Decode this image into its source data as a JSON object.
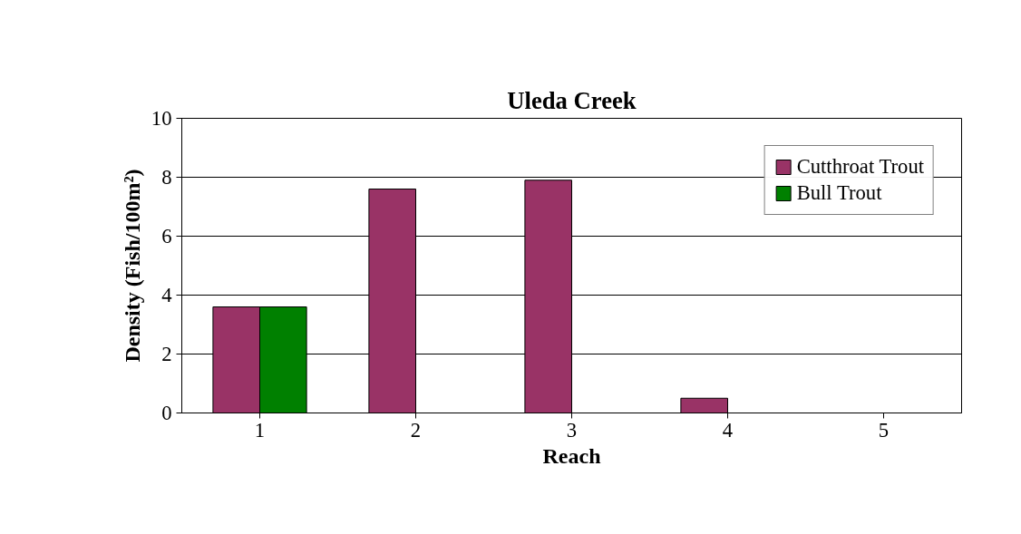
{
  "chart_data": {
    "type": "bar",
    "title": "Uleda Creek",
    "xlabel": "Reach",
    "ylabel": "Density (Fish/100m²)",
    "categories": [
      "1",
      "2",
      "3",
      "4",
      "5"
    ],
    "series": [
      {
        "name": "Cutthroat Trout",
        "color": "#993366",
        "values": [
          3.6,
          7.6,
          7.9,
          0.5,
          0
        ]
      },
      {
        "name": "Bull Trout",
        "color": "#008000",
        "values": [
          3.6,
          0,
          0,
          0,
          0
        ]
      }
    ],
    "ylim": [
      0,
      10
    ],
    "yticks": [
      0,
      2,
      4,
      6,
      8,
      10
    ],
    "grid": "y",
    "legend": "top right"
  }
}
